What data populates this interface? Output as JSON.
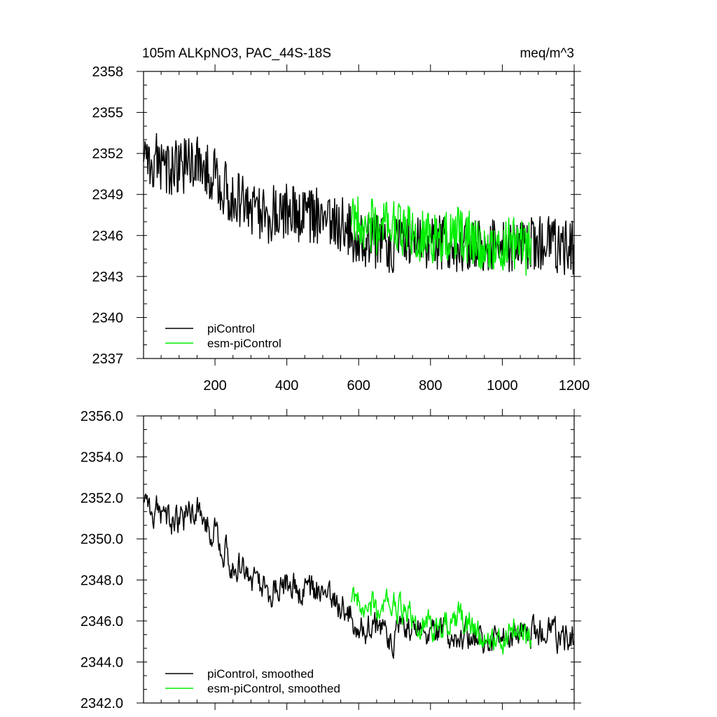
{
  "chart_data": [
    {
      "type": "line",
      "title_left": "105m ALKpNO3, PAC_44S-18S",
      "title_right": "meq/m^3",
      "xlabel": "",
      "ylabel": "",
      "xlim": [
        1,
        1200
      ],
      "ylim": [
        2337,
        2358
      ],
      "x_ticks": [
        200,
        400,
        600,
        800,
        1000,
        1200
      ],
      "x_tick_labels": [
        "200",
        "400",
        "600",
        "800",
        "1000",
        "1200"
      ],
      "y_ticks": [
        2337,
        2340,
        2343,
        2346,
        2349,
        2352,
        2355,
        2358
      ],
      "y_tick_labels": [
        "2337",
        "2340",
        "2343",
        "2346",
        "2349",
        "2352",
        "2355",
        "2358"
      ],
      "legend_position": "bottom-left",
      "series": [
        {
          "name": "piControl",
          "color": "#000000",
          "x": [
            1,
            50,
            100,
            150,
            200,
            250,
            300,
            350,
            400,
            450,
            500,
            550,
            580,
            600,
            650,
            700,
            750,
            800,
            850,
            900,
            950,
            1000,
            1050,
            1100,
            1150,
            1200
          ],
          "values": [
            2352.0,
            2351.2,
            2350.8,
            2351.5,
            2350.3,
            2348.8,
            2348.2,
            2347.5,
            2347.8,
            2347.2,
            2347.5,
            2346.8,
            2346.2,
            2345.8,
            2345.5,
            2345.3,
            2345.7,
            2345.6,
            2345.2,
            2345.4,
            2345.0,
            2345.2,
            2345.4,
            2345.6,
            2345.3,
            2345.0
          ],
          "noise_amplitude": 2.1
        },
        {
          "name": "esm-piControl",
          "color": "#00ee00",
          "x": [
            580,
            620,
            660,
            700,
            740,
            780,
            820,
            860,
            900,
            940,
            980,
            1020,
            1060,
            1080
          ],
          "values": [
            2347.0,
            2346.8,
            2346.5,
            2346.9,
            2346.2,
            2345.8,
            2345.5,
            2346.2,
            2346.0,
            2345.5,
            2345.2,
            2345.4,
            2345.1,
            2345.0
          ],
          "noise_amplitude": 2.0
        }
      ]
    },
    {
      "type": "line",
      "title_left": "",
      "title_right": "",
      "xlabel": "",
      "ylabel": "",
      "xlim": [
        1,
        1200
      ],
      "ylim": [
        2342,
        2356
      ],
      "x_ticks": [
        200,
        400,
        600,
        800,
        1000,
        1200
      ],
      "x_tick_labels": [],
      "y_ticks": [
        2342,
        2344,
        2346,
        2348,
        2350,
        2352,
        2354,
        2356
      ],
      "y_tick_labels": [
        "2342.0",
        "2344.0",
        "2346.0",
        "2348.0",
        "2350.0",
        "2352.0",
        "2354.0",
        "2356.0"
      ],
      "legend_position": "bottom-left",
      "series": [
        {
          "name": "piControl, smoothed",
          "color": "#000000",
          "x": [
            1,
            50,
            100,
            150,
            200,
            250,
            300,
            350,
            400,
            450,
            500,
            550,
            580,
            600,
            650,
            700,
            750,
            800,
            850,
            900,
            950,
            1000,
            1050,
            1100,
            1150,
            1200
          ],
          "values": [
            2352.0,
            2351.2,
            2350.8,
            2351.5,
            2350.3,
            2348.8,
            2348.2,
            2347.5,
            2347.8,
            2347.2,
            2347.5,
            2346.8,
            2346.2,
            2345.8,
            2345.5,
            2345.3,
            2345.7,
            2345.6,
            2345.2,
            2345.4,
            2345.0,
            2345.2,
            2345.4,
            2345.6,
            2345.3,
            2345.0
          ],
          "noise_amplitude": 1.4
        },
        {
          "name": "esm-piControl, smoothed",
          "color": "#00ee00",
          "x": [
            580,
            620,
            660,
            700,
            740,
            780,
            820,
            860,
            900,
            940,
            980,
            1020,
            1060,
            1080
          ],
          "values": [
            2347.0,
            2346.8,
            2346.5,
            2346.9,
            2346.2,
            2345.8,
            2345.5,
            2346.2,
            2346.0,
            2345.5,
            2345.2,
            2345.4,
            2345.1,
            2345.0
          ],
          "noise_amplitude": 1.3
        }
      ]
    }
  ]
}
